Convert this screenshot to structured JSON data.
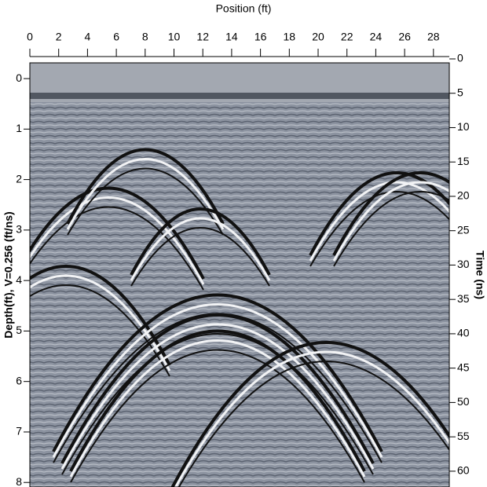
{
  "chart_data": {
    "type": "radargram",
    "title": "Position (ft)",
    "y_label": "Depth(ft), V=0.256 (ft/ns)",
    "y2_label": "Time (ns)",
    "xlim": [
      0,
      29.1
    ],
    "xticks": [
      0,
      2,
      4,
      6,
      8,
      10,
      12,
      14,
      16,
      18,
      20,
      22,
      24,
      26,
      28
    ],
    "ylim": [
      -0.39,
      8.09
    ],
    "yticks": [
      0,
      1,
      2,
      3,
      4,
      5,
      6,
      7,
      8
    ],
    "y2lim": [
      0,
      62.3
    ],
    "y2ticks": [
      0,
      5,
      10,
      15,
      20,
      25,
      30,
      35,
      40,
      45,
      50,
      55,
      60
    ]
  }
}
